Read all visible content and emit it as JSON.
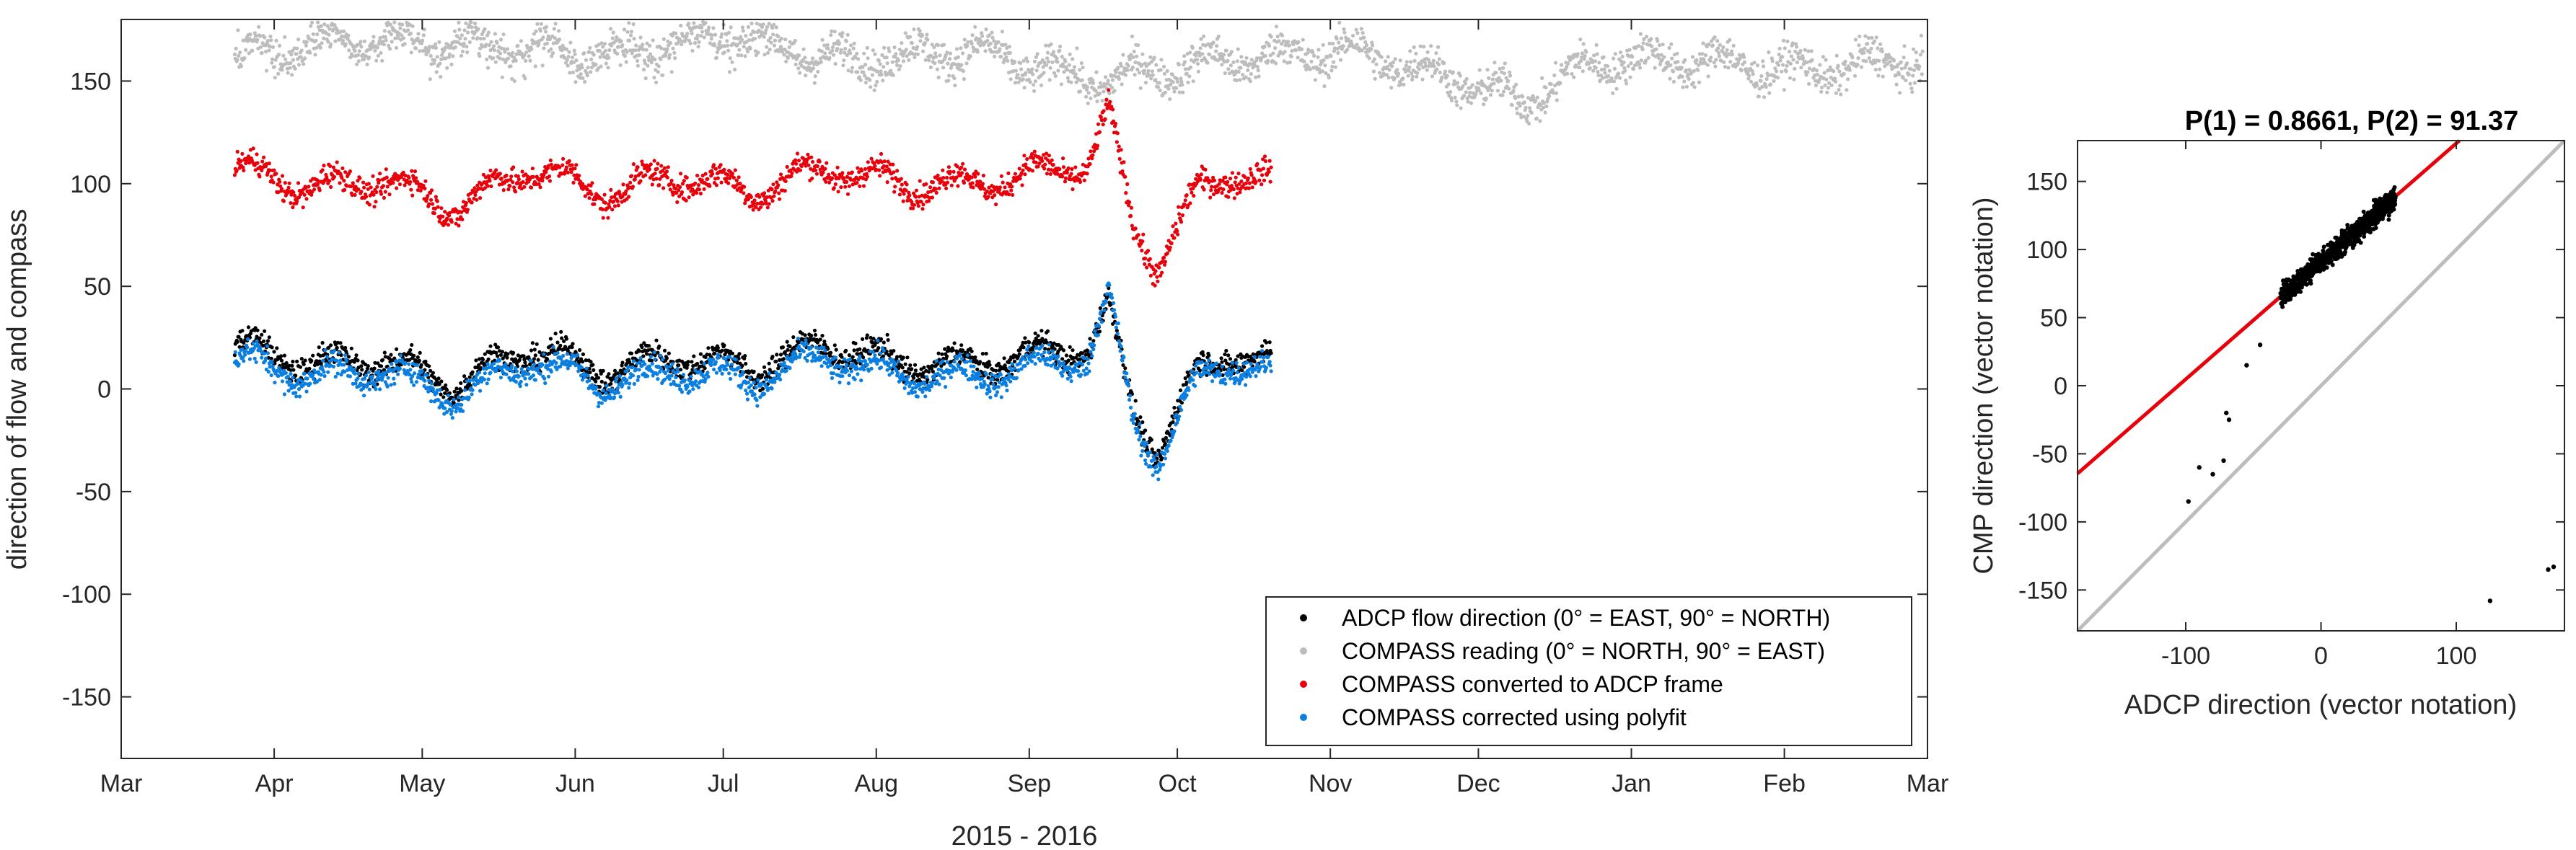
{
  "chart_data": [
    {
      "type": "scatter",
      "xlabel": "2015 - 2016",
      "ylabel": "direction of flow and compass",
      "x_tick_labels": [
        "Mar",
        "Apr",
        "May",
        "Jun",
        "Jul",
        "Aug",
        "Sep",
        "Oct",
        "Nov",
        "Dec",
        "Jan",
        "Feb",
        "Mar"
      ],
      "x_tick_dates": [
        "2015-03-01",
        "2015-04-01",
        "2015-05-01",
        "2015-06-01",
        "2015-07-01",
        "2015-08-01",
        "2015-09-01",
        "2015-10-01",
        "2015-11-01",
        "2015-12-01",
        "2016-01-01",
        "2016-02-01",
        "2016-03-01"
      ],
      "xlim": [
        "2015-03-01",
        "2016-03-01"
      ],
      "ylim": [
        -180,
        180
      ],
      "y_ticks": [
        -150,
        -100,
        -50,
        0,
        50,
        100,
        150
      ],
      "grid": false,
      "legend_position": "bottom-right",
      "series": [
        {
          "name": "ADCP flow direction (0° = EAST, 90° = NORTH)",
          "color": "#000000",
          "x_range": [
            "2015-03-24",
            "2015-10-20"
          ],
          "x": [
            "2015-03-24",
            "2015-04-08",
            "2015-04-23",
            "2015-05-08",
            "2015-05-23",
            "2015-06-07",
            "2015-06-22",
            "2015-07-07",
            "2015-07-22",
            "2015-08-06",
            "2015-08-21",
            "2015-09-05",
            "2015-09-13",
            "2015-09-17",
            "2015-09-22",
            "2015-09-27",
            "2015-10-05",
            "2015-10-12",
            "2015-10-20"
          ],
          "y": [
            22,
            12,
            14,
            2,
            20,
            8,
            16,
            10,
            22,
            12,
            12,
            18,
            20,
            40,
            -10,
            -30,
            8,
            18,
            12
          ]
        },
        {
          "name": "COMPASS reading (0° = NORTH, 90° = EAST)",
          "color": "#bdbdbd",
          "x_range": [
            "2015-03-24",
            "2016-02-29"
          ],
          "x": [
            "2015-03-24",
            "2015-04-15",
            "2015-05-10",
            "2015-06-05",
            "2015-07-01",
            "2015-07-25",
            "2015-08-20",
            "2015-09-14",
            "2015-10-10",
            "2015-11-05",
            "2015-11-28",
            "2015-12-10",
            "2015-12-25",
            "2016-01-15",
            "2016-02-05",
            "2016-02-25"
          ],
          "y": [
            160,
            170,
            168,
            162,
            172,
            160,
            165,
            150,
            160,
            165,
            150,
            140,
            160,
            160,
            155,
            160
          ]
        },
        {
          "name": "COMPASS converted to ADCP frame",
          "color": "#e8000b",
          "x_range": [
            "2015-03-24",
            "2015-10-20"
          ],
          "x": [
            "2015-03-24",
            "2015-04-08",
            "2015-04-23",
            "2015-05-08",
            "2015-05-23",
            "2015-06-07",
            "2015-06-22",
            "2015-07-07",
            "2015-07-22",
            "2015-08-06",
            "2015-08-21",
            "2015-09-05",
            "2015-09-13",
            "2015-09-17",
            "2015-09-22",
            "2015-09-27",
            "2015-10-05",
            "2015-10-12",
            "2015-10-20"
          ],
          "y": [
            108,
            98,
            102,
            88,
            108,
            95,
            104,
            96,
            108,
            100,
            100,
            106,
            110,
            135,
            80,
            60,
            96,
            106,
            100
          ]
        },
        {
          "name": "COMPASS corrected using polyfit",
          "color": "#0a7fe0",
          "x_range": [
            "2015-03-24",
            "2015-10-20"
          ],
          "x": [
            "2015-03-24",
            "2015-04-08",
            "2015-04-23",
            "2015-05-08",
            "2015-05-23",
            "2015-06-07",
            "2015-06-22",
            "2015-07-07",
            "2015-07-22",
            "2015-08-06",
            "2015-08-21",
            "2015-09-05",
            "2015-09-13",
            "2015-09-17",
            "2015-09-22",
            "2015-09-27",
            "2015-10-05",
            "2015-10-12",
            "2015-10-20"
          ],
          "y": [
            15,
            6,
            9,
            -4,
            14,
            2,
            10,
            4,
            16,
            6,
            6,
            12,
            16,
            45,
            -15,
            -35,
            4,
            14,
            6
          ]
        }
      ]
    },
    {
      "type": "scatter",
      "title": "P(1) = 0.8661, P(2) = 91.37",
      "xlabel": "ADCP direction (vector notation)",
      "ylabel": "CMP direction (vector notation)",
      "xlim": [
        -180,
        180
      ],
      "ylim": [
        -180,
        180
      ],
      "x_ticks": [
        -100,
        0,
        100
      ],
      "y_ticks": [
        -150,
        -100,
        -50,
        0,
        50,
        100,
        150
      ],
      "grid": false,
      "lines": [
        {
          "kind": "fit",
          "color": "#e8000b",
          "slope": 0.8661,
          "intercept": 91.37
        },
        {
          "kind": "one-to-one",
          "color": "#bdbdbd",
          "slope": 1,
          "intercept": 0
        }
      ],
      "outliers": {
        "x": [
          -98,
          -90,
          -80,
          -72,
          -70,
          -68,
          125,
          168,
          172,
          -55,
          -45
        ],
        "y": [
          -85,
          -60,
          -65,
          -55,
          -20,
          -25,
          -158,
          -135,
          -133,
          15,
          30
        ]
      },
      "cluster": {
        "x_range": [
          -30,
          55
        ],
        "y_range": [
          55,
          140
        ]
      }
    }
  ]
}
